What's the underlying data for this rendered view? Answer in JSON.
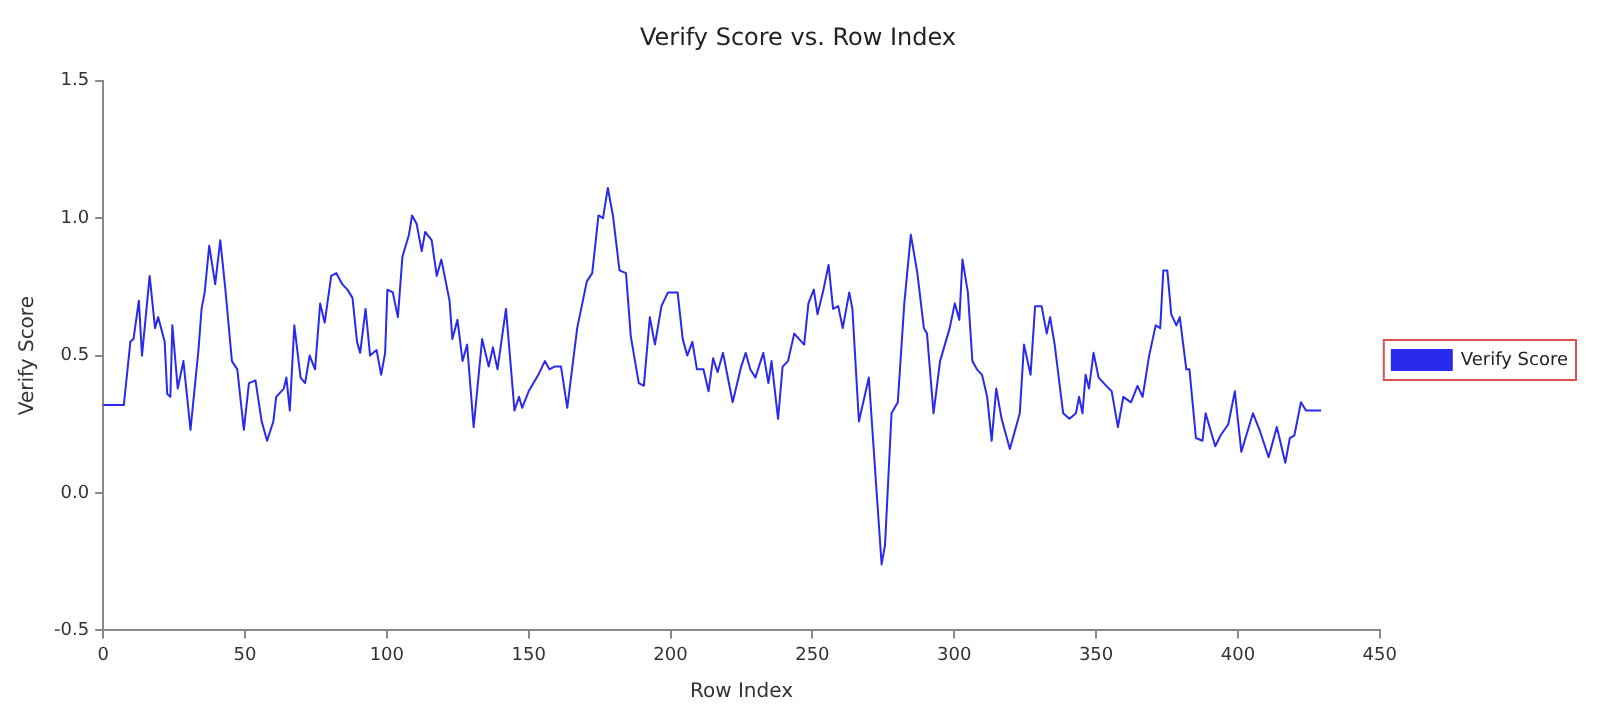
{
  "chart_data": {
    "type": "line",
    "title": "Verify Score vs. Row Index",
    "xlabel": "Row Index",
    "ylabel": "Verify Score",
    "xlim": [
      0,
      450
    ],
    "xticks": [
      0,
      50,
      100,
      150,
      200,
      250,
      300,
      350,
      400,
      450
    ],
    "ylim": [
      -0.5,
      1.5
    ],
    "yticks": [
      {
        "value": -0.5,
        "label": "-0.5"
      },
      {
        "value": 0,
        "label": "0.0"
      },
      {
        "value": 0.5,
        "label": "0.5"
      },
      {
        "value": 1,
        "label": "1.0"
      },
      {
        "value": 1.5,
        "label": "1.5"
      }
    ],
    "grid": false,
    "legend": "right",
    "marker": "none",
    "line_style": "solid",
    "series": [
      {
        "name": "Verify Score",
        "color": "#2a2aee",
        "x": [
          0,
          7.3,
          9.6,
          10.7,
          12.6,
          13.7,
          16.4,
          18.3,
          19.4,
          21.7,
          22.6,
          23.7,
          24.4,
          26.3,
          28.3,
          30.8,
          33.6,
          34.7,
          35.8,
          37.4,
          39.5,
          41.3,
          43.1,
          45.4,
          47.3,
          49.6,
          51.4,
          53.7,
          55.9,
          57.8,
          60,
          61,
          63.7,
          64.6,
          65.8,
          67.4,
          69.6,
          71.2,
          72.8,
          74.7,
          76.5,
          78.1,
          80.4,
          82.2,
          84.3,
          86.1,
          87.9,
          89.5,
          90.6,
          92.5,
          94.1,
          96.4,
          98,
          99.4,
          100.2,
          102.1,
          103.9,
          105.5,
          107.8,
          108.9,
          110.5,
          112.3,
          113.5,
          115.8,
          117.6,
          119.2,
          122.1,
          123.1,
          124.9,
          126.7,
          128.3,
          130.6,
          133.6,
          135.9,
          137.4,
          139,
          142,
          145,
          146.6,
          147.7,
          150,
          153.4,
          155.7,
          157.3,
          159.1,
          161.4,
          163.6,
          167.1,
          170.5,
          172.4,
          174.6,
          176.2,
          177.9,
          179.7,
          182,
          184.3,
          186,
          188.8,
          190.6,
          192.7,
          194.5,
          196.8,
          199.1,
          202.5,
          204.3,
          205.9,
          207.7,
          209.3,
          211.6,
          213.4,
          215,
          216.6,
          218.5,
          221.9,
          224.9,
          226.5,
          228.1,
          229.9,
          232.7,
          234.5,
          235.6,
          237.9,
          239.5,
          241.4,
          243.6,
          247.1,
          248.6,
          250.5,
          251.8,
          253.9,
          255.7,
          257.3,
          259.1,
          260.7,
          263,
          264.1,
          266.4,
          269.9,
          272.8,
          274.4,
          275.6,
          277.9,
          280.1,
          282.4,
          284.7,
          287,
          289.3,
          290.4,
          292.7,
          295,
          298.4,
          300.2,
          301.8,
          302.9,
          304.8,
          306.4,
          308,
          309.8,
          311.6,
          313.2,
          314.8,
          316.7,
          319.6,
          323.1,
          324.6,
          326.9,
          328.5,
          330.8,
          332.6,
          333.8,
          335.4,
          338.4,
          340.6,
          342.9,
          344,
          345.2,
          346.3,
          347.5,
          349.1,
          350.9,
          353.6,
          355.5,
          357.7,
          359.6,
          362.3,
          364.6,
          366.4,
          368.7,
          371,
          372.6,
          373.7,
          375.1,
          376.5,
          378.3,
          379.5,
          381.8,
          382.9,
          385.2,
          387.5,
          388.6,
          392,
          393.9,
          396.6,
          398.9,
          401.2,
          405.3,
          407.6,
          410.8,
          413.7,
          416.7,
          418.3,
          419.9,
          422.2,
          424,
          429.3
        ],
        "values": [
          0.32,
          0.32,
          0.55,
          0.56,
          0.7,
          0.5,
          0.79,
          0.6,
          0.64,
          0.55,
          0.36,
          0.35,
          0.61,
          0.38,
          0.48,
          0.23,
          0.52,
          0.67,
          0.73,
          0.9,
          0.76,
          0.92,
          0.74,
          0.48,
          0.45,
          0.23,
          0.4,
          0.41,
          0.26,
          0.19,
          0.26,
          0.35,
          0.38,
          0.42,
          0.3,
          0.61,
          0.42,
          0.4,
          0.5,
          0.45,
          0.69,
          0.62,
          0.79,
          0.8,
          0.76,
          0.74,
          0.71,
          0.55,
          0.51,
          0.67,
          0.5,
          0.52,
          0.43,
          0.51,
          0.74,
          0.73,
          0.64,
          0.86,
          0.94,
          1.01,
          0.98,
          0.88,
          0.95,
          0.92,
          0.79,
          0.85,
          0.7,
          0.56,
          0.63,
          0.48,
          0.54,
          0.24,
          0.56,
          0.46,
          0.53,
          0.45,
          0.67,
          0.3,
          0.35,
          0.31,
          0.37,
          0.43,
          0.48,
          0.45,
          0.46,
          0.46,
          0.31,
          0.6,
          0.77,
          0.8,
          1.01,
          1,
          1.11,
          1.01,
          0.81,
          0.8,
          0.57,
          0.4,
          0.39,
          0.64,
          0.54,
          0.68,
          0.73,
          0.73,
          0.56,
          0.5,
          0.55,
          0.45,
          0.45,
          0.37,
          0.49,
          0.44,
          0.51,
          0.33,
          0.46,
          0.51,
          0.45,
          0.42,
          0.51,
          0.4,
          0.48,
          0.27,
          0.46,
          0.48,
          0.58,
          0.54,
          0.69,
          0.74,
          0.65,
          0.74,
          0.83,
          0.67,
          0.68,
          0.6,
          0.73,
          0.67,
          0.26,
          0.42,
          -0.02,
          -0.26,
          -0.19,
          0.29,
          0.33,
          0.69,
          0.94,
          0.8,
          0.6,
          0.58,
          0.29,
          0.48,
          0.6,
          0.69,
          0.63,
          0.85,
          0.73,
          0.48,
          0.45,
          0.43,
          0.35,
          0.19,
          0.38,
          0.27,
          0.16,
          0.29,
          0.54,
          0.43,
          0.68,
          0.68,
          0.58,
          0.64,
          0.54,
          0.29,
          0.27,
          0.29,
          0.35,
          0.29,
          0.43,
          0.38,
          0.51,
          0.42,
          0.39,
          0.37,
          0.24,
          0.35,
          0.33,
          0.39,
          0.35,
          0.5,
          0.61,
          0.6,
          0.81,
          0.81,
          0.65,
          0.61,
          0.64,
          0.45,
          0.45,
          0.2,
          0.19,
          0.29,
          0.17,
          0.21,
          0.25,
          0.37,
          0.15,
          0.29,
          0.23,
          0.13,
          0.24,
          0.11,
          0.2,
          0.21,
          0.33,
          0.3,
          0.3
        ]
      }
    ]
  }
}
